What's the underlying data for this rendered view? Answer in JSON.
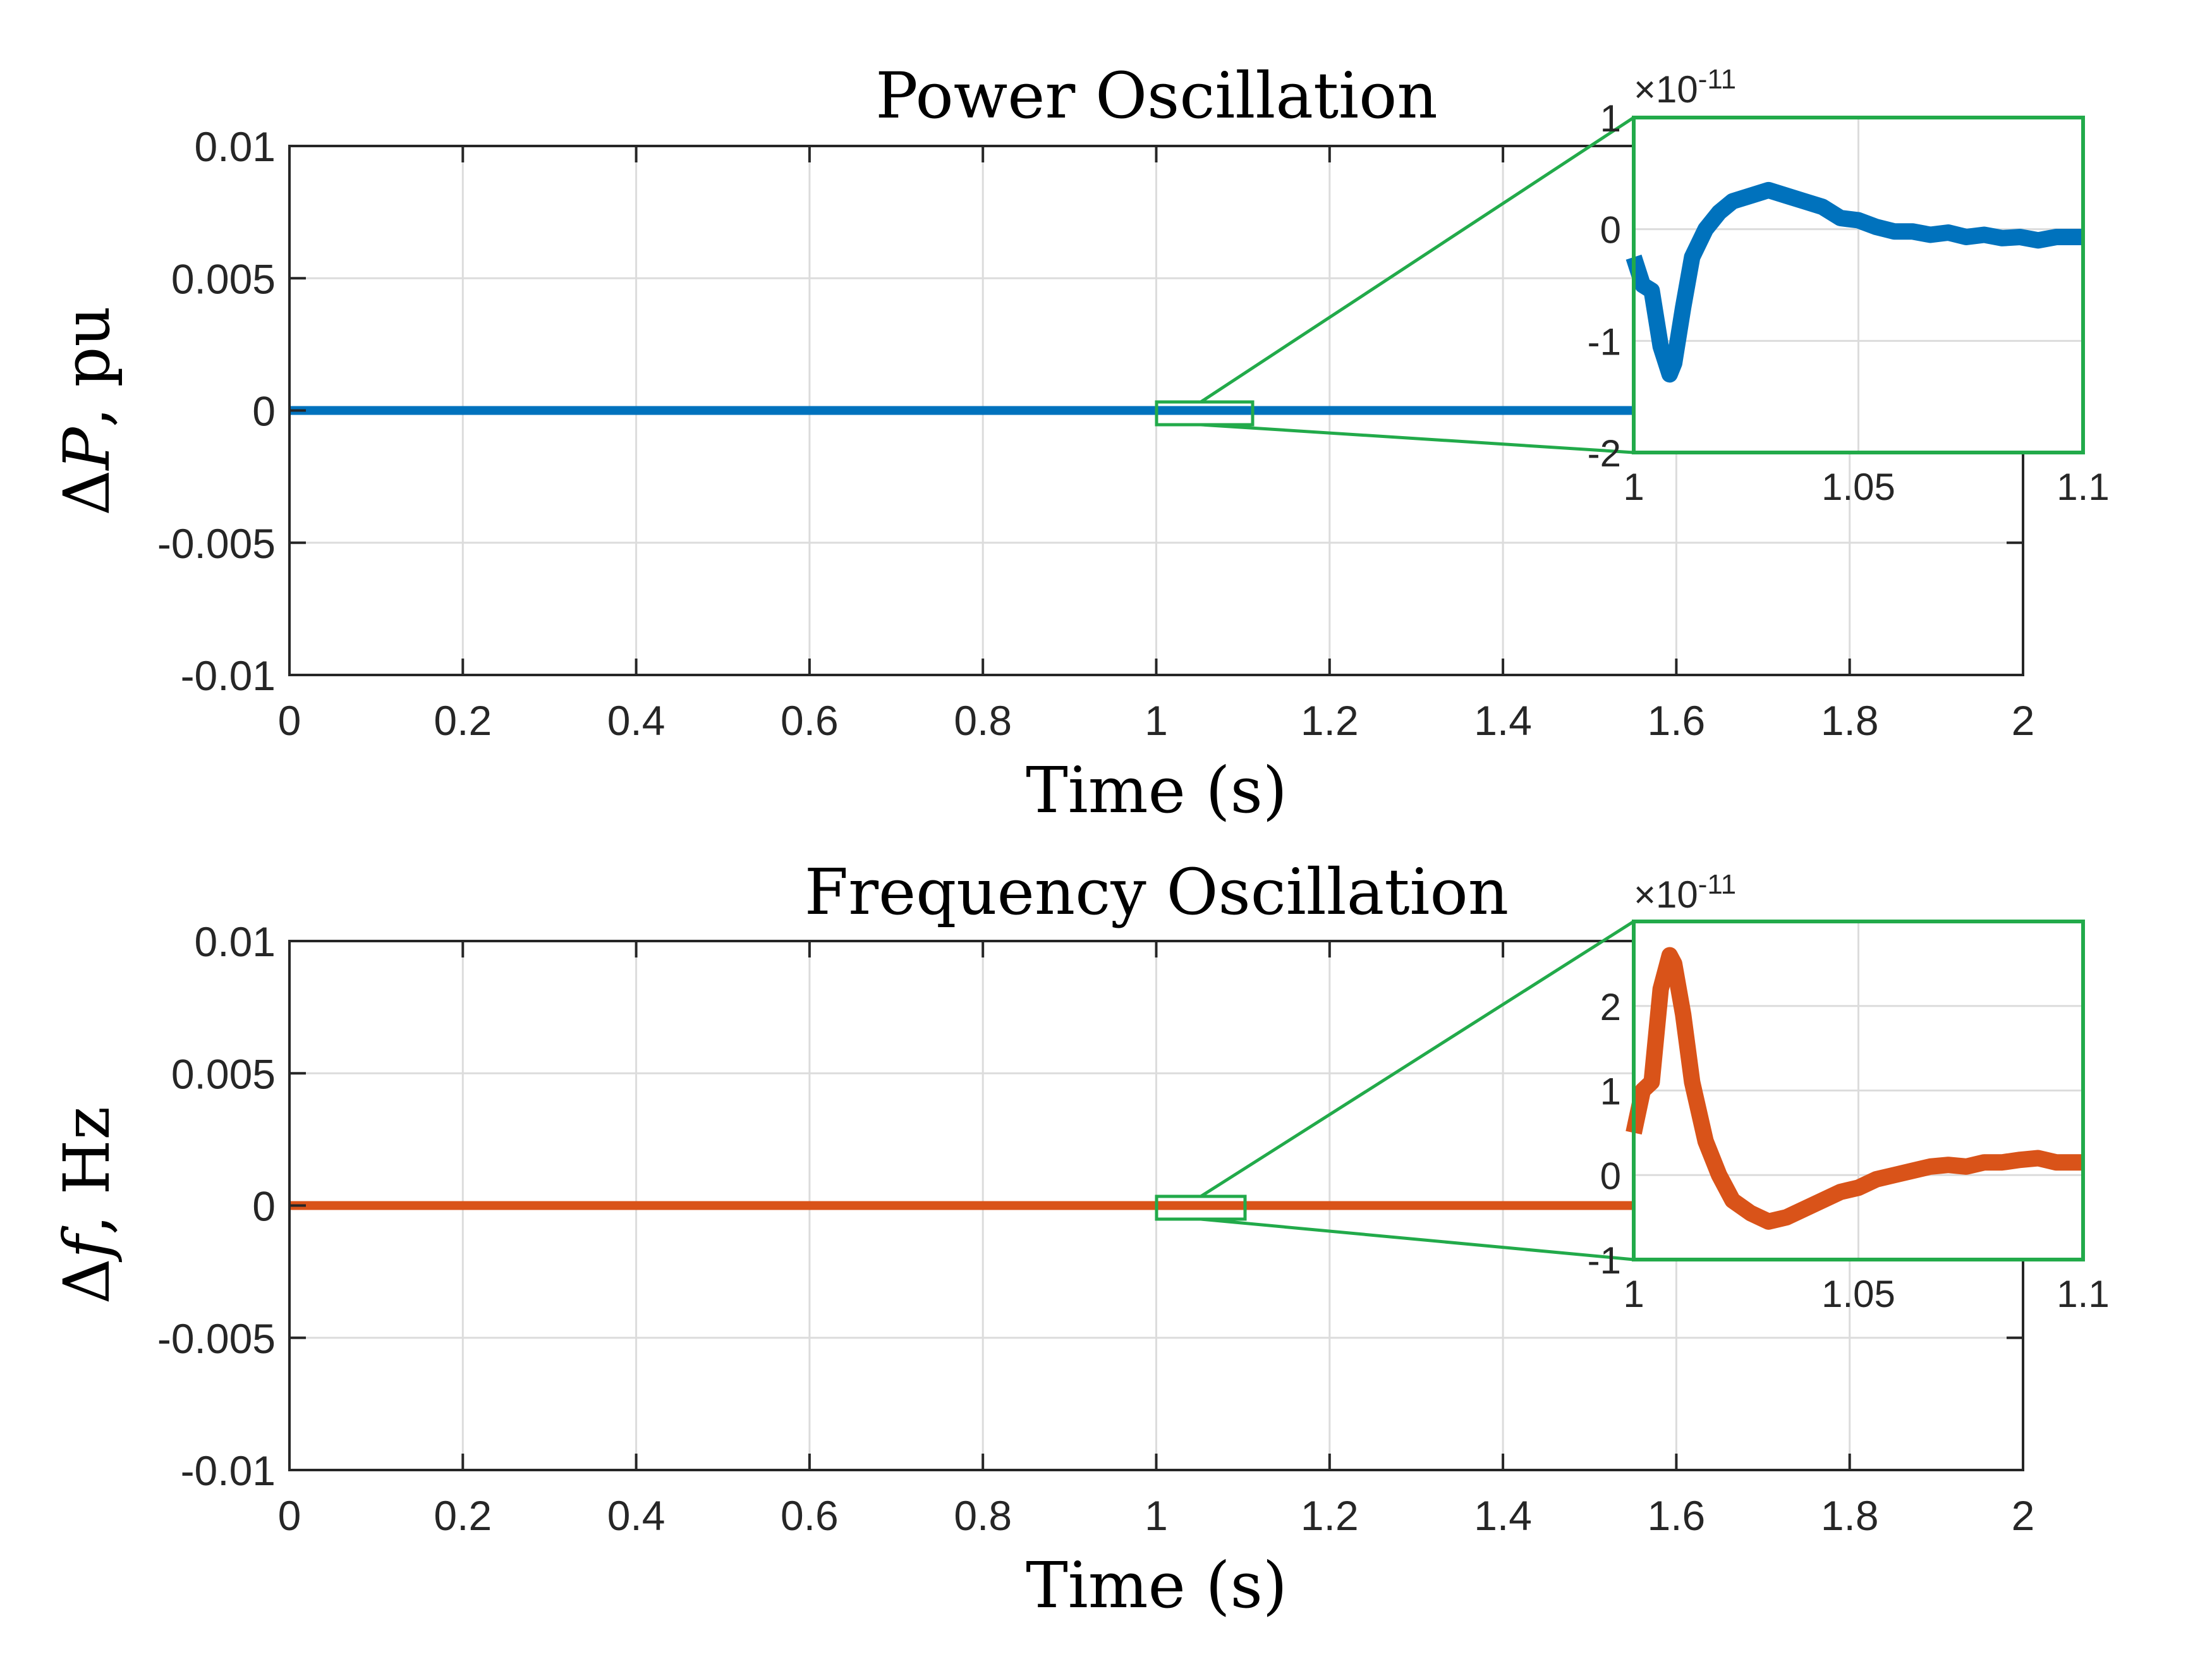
{
  "colors": {
    "power_series": "#0072BD",
    "frequency_series": "#D95319",
    "zoom_box": "#22AA4A",
    "axis": "#262626",
    "grid": "#DCDCDC"
  },
  "chart_data": [
    {
      "type": "line",
      "title": "Power Oscillation",
      "xlabel": "Time (s)",
      "ylabel": "ΔP, pu",
      "ylabel_symbol": "Δ",
      "ylabel_var": "P",
      "ylabel_unit": ", pu",
      "xlim": [
        0,
        2
      ],
      "ylim": [
        -0.01,
        0.01
      ],
      "grid": true,
      "xticks": [
        0,
        0.2,
        0.4,
        0.6,
        0.8,
        1,
        1.2,
        1.4,
        1.6,
        1.8,
        2
      ],
      "xtick_labels": [
        "0",
        "0.2",
        "0.4",
        "0.6",
        "0.8",
        "1",
        "1.2",
        "1.4",
        "1.6",
        "1.8",
        "2"
      ],
      "yticks": [
        0.01,
        0.005,
        0,
        -0.005,
        -0.01
      ],
      "ytick_labels": [
        "0.01",
        "0.005",
        "0",
        "-0.005",
        "-0.01"
      ],
      "series": [
        {
          "name": "ΔP",
          "color": "#0072BD",
          "x": [
            0,
            2
          ],
          "y": [
            0,
            0
          ]
        }
      ],
      "zoom_region": {
        "x": [
          1.0,
          1.1
        ]
      },
      "inset": {
        "xlim": [
          1.0,
          1.1
        ],
        "ylim": [
          -2,
          1
        ],
        "exponent_label": "×10",
        "exponent_value": "-11",
        "xticks": [
          1,
          1.05,
          1.1
        ],
        "xtick_labels": [
          "1",
          "1.05",
          "1.1"
        ],
        "yticks": [
          1,
          0,
          -1,
          -2
        ],
        "ytick_labels": [
          "1",
          "0",
          "-1",
          "-2"
        ],
        "series": {
          "x": [
            1.0,
            1.002,
            1.004,
            1.006,
            1.008,
            1.009,
            1.011,
            1.013,
            1.016,
            1.019,
            1.022,
            1.026,
            1.03,
            1.034,
            1.038,
            1.042,
            1.046,
            1.05,
            1.054,
            1.058,
            1.062,
            1.066,
            1.07,
            1.074,
            1.078,
            1.082,
            1.086,
            1.09,
            1.094,
            1.1
          ],
          "y": [
            -0.25,
            -0.5,
            -0.55,
            -1.05,
            -1.3,
            -1.2,
            -0.7,
            -0.25,
            0.0,
            0.15,
            0.25,
            0.3,
            0.35,
            0.3,
            0.25,
            0.2,
            0.1,
            0.08,
            0.02,
            -0.02,
            -0.02,
            -0.05,
            -0.03,
            -0.07,
            -0.05,
            -0.08,
            -0.07,
            -0.1,
            -0.07,
            -0.07
          ]
        }
      }
    },
    {
      "type": "line",
      "title": "Frequency Oscillation",
      "xlabel": "Time (s)",
      "ylabel": "Δf, Hz",
      "ylabel_symbol": "Δ",
      "ylabel_var": "f",
      "ylabel_unit": ", Hz",
      "xlim": [
        0,
        2
      ],
      "ylim": [
        -0.01,
        0.01
      ],
      "grid": true,
      "xticks": [
        0,
        0.2,
        0.4,
        0.6,
        0.8,
        1,
        1.2,
        1.4,
        1.6,
        1.8,
        2
      ],
      "xtick_labels": [
        "0",
        "0.2",
        "0.4",
        "0.6",
        "0.8",
        "1",
        "1.2",
        "1.4",
        "1.6",
        "1.8",
        "2"
      ],
      "yticks": [
        0.01,
        0.005,
        0,
        -0.005,
        -0.01
      ],
      "ytick_labels": [
        "0.01",
        "0.005",
        "0",
        "-0.005",
        "-0.01"
      ],
      "series": [
        {
          "name": "Δf",
          "color": "#D95319",
          "x": [
            0,
            2
          ],
          "y": [
            0,
            0
          ]
        }
      ],
      "zoom_region": {
        "x": [
          1.0,
          1.1
        ]
      },
      "inset": {
        "xlim": [
          1.0,
          1.1
        ],
        "ylim": [
          -1,
          3
        ],
        "exponent_label": "×10",
        "exponent_value": "-11",
        "xticks": [
          1,
          1.05,
          1.1
        ],
        "xtick_labels": [
          "1",
          "1.05",
          "1.1"
        ],
        "yticks": [
          2,
          1,
          0,
          -1
        ],
        "ytick_labels": [
          "2",
          "1",
          "0",
          "-1"
        ],
        "series": {
          "x": [
            1.0,
            1.002,
            1.004,
            1.006,
            1.008,
            1.009,
            1.011,
            1.013,
            1.016,
            1.019,
            1.022,
            1.026,
            1.03,
            1.034,
            1.038,
            1.042,
            1.046,
            1.05,
            1.054,
            1.058,
            1.062,
            1.066,
            1.07,
            1.074,
            1.078,
            1.082,
            1.086,
            1.09,
            1.094,
            1.1
          ],
          "y": [
            0.5,
            1.0,
            1.1,
            2.2,
            2.6,
            2.5,
            1.9,
            1.1,
            0.4,
            0.0,
            -0.3,
            -0.45,
            -0.55,
            -0.5,
            -0.4,
            -0.3,
            -0.2,
            -0.15,
            -0.05,
            0.0,
            0.05,
            0.1,
            0.12,
            0.1,
            0.15,
            0.15,
            0.18,
            0.2,
            0.15,
            0.15
          ]
        }
      }
    }
  ]
}
